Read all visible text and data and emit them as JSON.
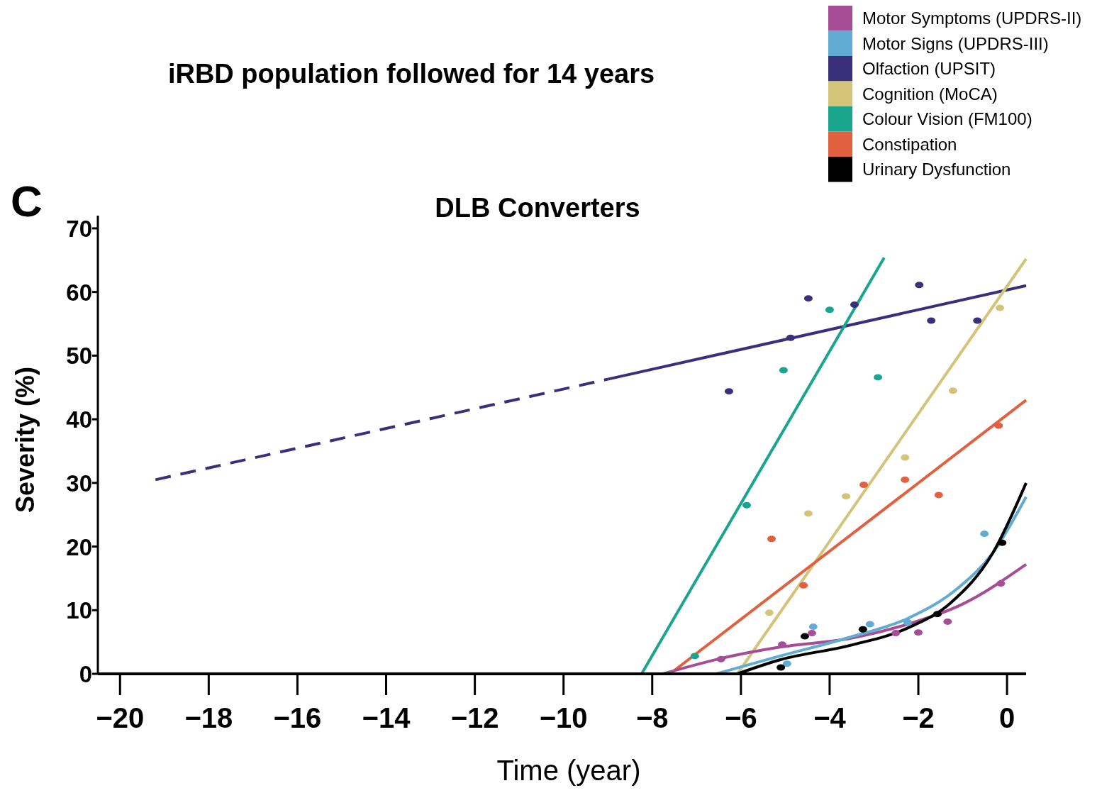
{
  "chart_data": {
    "type": "scatter",
    "title": "iRBD population followed for 14 years",
    "subtitle": "DLB Converters",
    "xlabel": "Time (year)",
    "ylabel": "Severity (%)",
    "annotations": [
      "C"
    ],
    "xlim": [
      -20.5,
      0.43
    ],
    "ylim": [
      0,
      72
    ],
    "xticks": [
      {
        "value": -20,
        "label": "−20"
      },
      {
        "value": -18,
        "label": "−18"
      },
      {
        "value": -16,
        "label": "−16"
      },
      {
        "value": -14,
        "label": "−14"
      },
      {
        "value": -12,
        "label": "−12"
      },
      {
        "value": -10,
        "label": "−10"
      },
      {
        "value": -8,
        "label": "−8"
      },
      {
        "value": -6,
        "label": "−6"
      },
      {
        "value": -4,
        "label": "−4"
      },
      {
        "value": -2,
        "label": "−2"
      },
      0
    ],
    "yticks": [
      0,
      10,
      20,
      30,
      40,
      50,
      60,
      70
    ],
    "grid": false,
    "legend": "top right",
    "marker": "circle",
    "series": [
      {
        "name": "Motor Symptoms (UPDRS-II)",
        "color": "#a64d96",
        "x": [
          -6.45,
          -5.07,
          -4.4,
          -2.51,
          -2.0,
          -1.34,
          -0.14
        ],
        "values": [
          2.3,
          4.6,
          6.4,
          6.4,
          6.5,
          8.2,
          14.2
        ]
      },
      {
        "name": "Motor Signs (UPDRS-III)",
        "color": "#62acd4",
        "x": [
          -4.96,
          -4.37,
          -3.09,
          -2.24,
          -0.51
        ],
        "values": [
          1.6,
          7.4,
          7.8,
          8.1,
          22.0
        ]
      },
      {
        "name": "Olfaction (UPSIT)",
        "color": "#3a2f7a",
        "x": [
          -6.27,
          -4.88,
          -4.48,
          -3.44,
          -1.98,
          -1.71,
          -0.67
        ],
        "values": [
          44.4,
          52.8,
          59.0,
          58.0,
          61.1,
          55.5,
          55.5
        ]
      },
      {
        "name": "Cognition (MoCA)",
        "color": "#d4c47a",
        "x": [
          -5.36,
          -4.48,
          -3.63,
          -2.3,
          -1.22,
          -0.16
        ],
        "values": [
          9.6,
          25.2,
          27.9,
          34.0,
          44.5,
          57.5
        ]
      },
      {
        "name": "Colour Vision (FM100)",
        "color": "#1aa58f",
        "x": [
          -7.04,
          -5.87,
          -5.04,
          -4.0,
          -2.91
        ],
        "values": [
          2.8,
          26.5,
          47.7,
          57.2,
          46.6
        ]
      },
      {
        "name": "Constipation",
        "color": "#e0603f",
        "x": [
          -5.31,
          -4.59,
          -3.23,
          -2.3,
          -1.54,
          -0.19
        ],
        "values": [
          21.2,
          13.9,
          29.7,
          30.5,
          28.1,
          39.0
        ]
      },
      {
        "name": "Urinary Dysfunction",
        "color": "#000000",
        "x": [
          -5.1,
          -4.56,
          -3.25,
          -1.57,
          -0.11
        ],
        "values": [
          1.0,
          5.9,
          7.0,
          9.4,
          20.6
        ]
      },
      {
        "type": "line",
        "marker": "none",
        "color": "#3a2f7a",
        "line_style": "dashed",
        "x": [
          -19.2,
          -9.0
        ],
        "values": [
          30.5,
          46.3
        ]
      },
      {
        "type": "line",
        "marker": "none",
        "color": "#3a2f7a",
        "line_style": "solid",
        "x": [
          -9.0,
          0.43
        ],
        "values": [
          46.3,
          61.0
        ]
      },
      {
        "type": "line",
        "marker": "none",
        "color": "#1aa58f",
        "line_style": "solid",
        "x": [
          -8.24,
          -2.77
        ],
        "values": [
          0,
          65.4
        ]
      },
      {
        "type": "line",
        "marker": "none",
        "color": "#d4c47a",
        "line_style": "solid",
        "x": [
          -6.08,
          0.43
        ],
        "values": [
          0,
          65.2
        ]
      },
      {
        "type": "line",
        "marker": "none",
        "color": "#e0603f",
        "line_style": "solid",
        "x": [
          -7.6,
          0.43
        ],
        "values": [
          0,
          43.0
        ]
      },
      {
        "type": "line",
        "marker": "none",
        "color": "#a64d96",
        "line_style": "solid",
        "x": [
          -7.76,
          -6.4,
          -5.12,
          -3.52,
          -2.24,
          -0.96,
          0.43
        ],
        "values": [
          0,
          2.5,
          4.2,
          5.6,
          7.8,
          11.1,
          17.2
        ]
      },
      {
        "type": "line",
        "marker": "none",
        "color": "#62acd4",
        "line_style": "solid",
        "x": [
          -6.56,
          -5.12,
          -3.52,
          -2.24,
          -1.12,
          -0.32,
          0.43
        ],
        "values": [
          0,
          2.8,
          5.8,
          8.7,
          13.4,
          19.0,
          27.8
        ]
      },
      {
        "type": "line",
        "marker": "none",
        "color": "#000000",
        "line_style": "solid",
        "x": [
          -6.08,
          -5.12,
          -3.52,
          -2.24,
          -1.28,
          -0.32,
          0.43
        ],
        "values": [
          0,
          2.2,
          4.5,
          7.2,
          11.1,
          19.0,
          30.0
        ]
      }
    ]
  }
}
